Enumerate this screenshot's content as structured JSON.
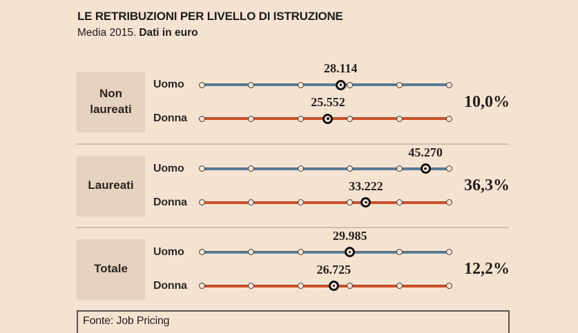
{
  "header": {
    "title": "LE RETRIBUZIONI PER LIVELLO DI ISTRUZIONE",
    "subtitle_prefix": "Media 2015.",
    "subtitle_bold": "Dati in euro"
  },
  "footer": {
    "source": "Fonte: Job Pricing"
  },
  "colors": {
    "background": "#f5e3d2",
    "group_box": "#e5d3c0",
    "uomo_line": "#5d7f97",
    "donna_line": "#d0532b",
    "text_dark": "#1e1c19",
    "divider": "#cbbfb0",
    "tick_ring": "#3d3d3d",
    "marker_ring": "#141414",
    "footer_border": "#5a544c"
  },
  "chart_data": {
    "type": "dot-line",
    "title": "LE RETRIBUZIONI PER LIVELLO DI ISTRUZIONE",
    "subtitle": "Media 2015. Dati in euro",
    "unit": "euro",
    "axis": {
      "min": 0,
      "max": 50000,
      "tick_step": 10000,
      "tick_count": 6
    },
    "legend": "none",
    "source": "Fonte: Job Pricing",
    "groups": [
      {
        "label": "Non laureati",
        "gap_percent": "10,0%",
        "rows": [
          {
            "label": "Uomo",
            "series": "Uomo",
            "value": 28114,
            "value_label": "28.114"
          },
          {
            "label": "Donna",
            "series": "Donna",
            "value": 25552,
            "value_label": "25.552"
          }
        ]
      },
      {
        "label": "Laureati",
        "gap_percent": "36,3%",
        "rows": [
          {
            "label": "Uomo",
            "series": "Uomo",
            "value": 45270,
            "value_label": "45.270"
          },
          {
            "label": "Donna",
            "series": "Donna",
            "value": 33222,
            "value_label": "33.222"
          }
        ]
      },
      {
        "label": "Totale",
        "gap_percent": "12,2%",
        "rows": [
          {
            "label": "Uomo",
            "series": "Uomo",
            "value": 29985,
            "value_label": "29.985"
          },
          {
            "label": "Donna",
            "series": "Donna",
            "value": 26725,
            "value_label": "26.725"
          }
        ]
      }
    ]
  }
}
